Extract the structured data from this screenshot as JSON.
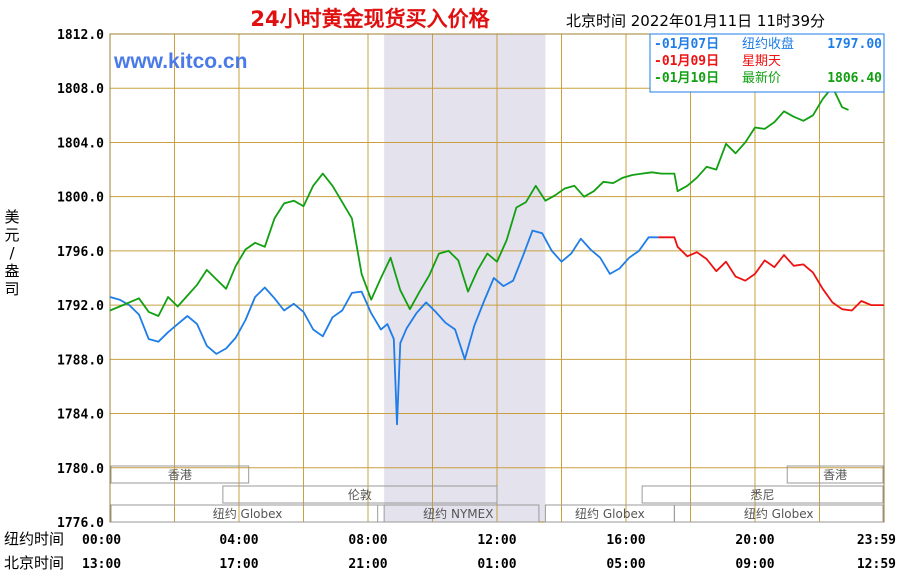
{
  "chart_data": {
    "type": "line",
    "title": "24小时黄金现货买入价格",
    "subtitle": "北京时间   2022年01月11日 11时39分",
    "watermark": "www.kitco.cn",
    "ylabel_chars": [
      "美",
      "元",
      "/",
      "盎",
      "司"
    ],
    "ylim": [
      1776,
      1812
    ],
    "yticks": [
      "1812.0",
      "1808.0",
      "1804.0",
      "1800.0",
      "1796.0",
      "1792.0",
      "1788.0",
      "1784.0",
      "1780.0",
      "1776.0"
    ],
    "xaxis_rows": [
      {
        "label": "纽约时间",
        "ticks": [
          "00:00",
          "04:00",
          "08:00",
          "12:00",
          "16:00",
          "20:00",
          "23:59"
        ]
      },
      {
        "label": "北京时间",
        "ticks": [
          "13:00",
          "17:00",
          "21:00",
          "01:00",
          "05:00",
          "09:00",
          "12:59"
        ]
      }
    ],
    "legend": [
      {
        "prefix": "-",
        "date": "01月07日",
        "desc": "纽约收盘",
        "value": "1797.00",
        "color": "#1e7de8"
      },
      {
        "prefix": "-",
        "date": "01月09日",
        "desc": "星期天",
        "value": "",
        "color": "#ee1111"
      },
      {
        "prefix": "-",
        "date": "01月10日",
        "desc": "最新价",
        "value": "1806.40",
        "color": "#12a012"
      }
    ],
    "markets": [
      {
        "name": "香港",
        "row": 0,
        "x_start": 0,
        "x_end": 4.3
      },
      {
        "name": "香港",
        "row": 0,
        "x_start": 21,
        "x_end": 24
      },
      {
        "name": "伦敦",
        "row": 1,
        "x_start": 3.5,
        "x_end": 12
      },
      {
        "name": "悉尼",
        "row": 1,
        "x_start": 16.5,
        "x_end": 24
      },
      {
        "name": "纽约 Globex",
        "row": 2,
        "x_start": 0,
        "x_end": 8.5
      },
      {
        "name": "纽约 NYMEX",
        "row": 2,
        "x_start": 8.3,
        "x_end": 13.3
      },
      {
        "name": "纽约 Globex",
        "row": 2,
        "x_start": 13.5,
        "x_end": 17.5
      },
      {
        "name": "纽约 Globex",
        "row": 2,
        "x_start": 17.5,
        "x_end": 24
      }
    ],
    "shaded_range": [
      8.5,
      13.5
    ],
    "series": [
      {
        "name": "纽约收盘",
        "color": "#1e7de8",
        "x": [
          0,
          0.3,
          0.6,
          0.9,
          1.2,
          1.5,
          1.8,
          2.1,
          2.4,
          2.7,
          3.0,
          3.3,
          3.6,
          3.9,
          4.2,
          4.5,
          4.8,
          5.1,
          5.4,
          5.7,
          6.0,
          6.3,
          6.6,
          6.9,
          7.2,
          7.5,
          7.8,
          8.1,
          8.4,
          8.6,
          8.8,
          8.9,
          9.0,
          9.2,
          9.5,
          9.8,
          10.1,
          10.4,
          10.7,
          11.0,
          11.3,
          11.6,
          11.9,
          12.2,
          12.5,
          12.8,
          13.1,
          13.4,
          13.7,
          14.0,
          14.3,
          14.6,
          14.9,
          15.2,
          15.5,
          15.8,
          16.1,
          16.4,
          16.7,
          17.0
        ],
        "y": [
          1792.6,
          1792.4,
          1792.0,
          1791.3,
          1789.5,
          1789.3,
          1790.0,
          1790.6,
          1791.2,
          1790.6,
          1789.0,
          1788.4,
          1788.8,
          1789.6,
          1790.9,
          1792.6,
          1793.3,
          1792.5,
          1791.6,
          1792.1,
          1791.5,
          1790.2,
          1789.7,
          1791.1,
          1791.6,
          1792.9,
          1793.0,
          1791.4,
          1790.2,
          1790.6,
          1789.5,
          1783.2,
          1789.2,
          1790.3,
          1791.4,
          1792.2,
          1791.5,
          1790.7,
          1790.2,
          1788.0,
          1790.5,
          1792.3,
          1794.0,
          1793.4,
          1793.8,
          1795.6,
          1797.5,
          1797.3,
          1796.0,
          1795.2,
          1795.8,
          1796.9,
          1796.1,
          1795.5,
          1794.3,
          1794.7,
          1795.5,
          1796.0,
          1797.0,
          1797.0
        ]
      },
      {
        "name": "星期天",
        "color": "#ee1111",
        "x": [
          17.0,
          17.5,
          17.6,
          17.9,
          18.2,
          18.5,
          18.8,
          19.1,
          19.4,
          19.7,
          20.0,
          20.3,
          20.6,
          20.9,
          21.2,
          21.5,
          21.8,
          22.1,
          22.4,
          22.7,
          23.0,
          23.3,
          23.6,
          23.99
        ],
        "y": [
          1797.0,
          1797.0,
          1796.3,
          1795.6,
          1795.9,
          1795.4,
          1794.5,
          1795.2,
          1794.1,
          1793.8,
          1794.3,
          1795.3,
          1794.8,
          1795.7,
          1794.9,
          1795.0,
          1794.4,
          1793.2,
          1792.2,
          1791.7,
          1791.6,
          1792.3,
          1792.0,
          1792.0
        ]
      },
      {
        "name": "最新价",
        "color": "#12a012",
        "x": [
          0,
          0.3,
          0.6,
          0.9,
          1.2,
          1.5,
          1.8,
          2.1,
          2.4,
          2.7,
          3.0,
          3.3,
          3.6,
          3.9,
          4.2,
          4.5,
          4.8,
          5.1,
          5.4,
          5.7,
          6.0,
          6.3,
          6.6,
          6.9,
          7.2,
          7.5,
          7.8,
          8.1,
          8.4,
          8.7,
          9.0,
          9.3,
          9.6,
          9.9,
          10.2,
          10.5,
          10.8,
          11.1,
          11.4,
          11.7,
          12.0,
          12.3,
          12.6,
          12.9,
          13.2,
          13.5,
          13.8,
          14.1,
          14.4,
          14.7,
          15.0,
          15.3,
          15.6,
          15.9,
          16.2,
          16.5,
          16.8,
          17.1,
          17.5,
          17.6,
          17.9,
          18.2,
          18.5,
          18.8,
          19.1,
          19.4,
          19.7,
          20.0,
          20.3,
          20.6,
          20.9,
          21.2,
          21.5,
          21.8,
          22.1,
          22.4,
          22.7,
          22.9
        ],
        "y": [
          1791.6,
          1791.9,
          1792.2,
          1792.5,
          1791.5,
          1791.2,
          1792.6,
          1791.9,
          1792.7,
          1793.5,
          1794.6,
          1793.9,
          1793.2,
          1794.9,
          1796.1,
          1796.6,
          1796.3,
          1798.4,
          1799.5,
          1799.7,
          1799.3,
          1800.8,
          1801.7,
          1800.8,
          1799.6,
          1798.4,
          1794.3,
          1792.4,
          1794.0,
          1795.5,
          1793.1,
          1791.7,
          1793.0,
          1794.2,
          1795.8,
          1796.0,
          1795.3,
          1793.0,
          1794.6,
          1795.8,
          1795.2,
          1796.8,
          1799.2,
          1799.6,
          1800.8,
          1799.7,
          1800.1,
          1800.6,
          1800.8,
          1800.0,
          1800.4,
          1801.1,
          1801.0,
          1801.4,
          1801.6,
          1801.7,
          1801.8,
          1801.7,
          1801.7,
          1800.4,
          1800.8,
          1801.4,
          1802.2,
          1802.0,
          1803.9,
          1803.2,
          1804.0,
          1805.1,
          1805.0,
          1805.5,
          1806.3,
          1805.9,
          1805.6,
          1806.0,
          1807.2,
          1808.1,
          1806.6,
          1806.4
        ]
      }
    ]
  }
}
